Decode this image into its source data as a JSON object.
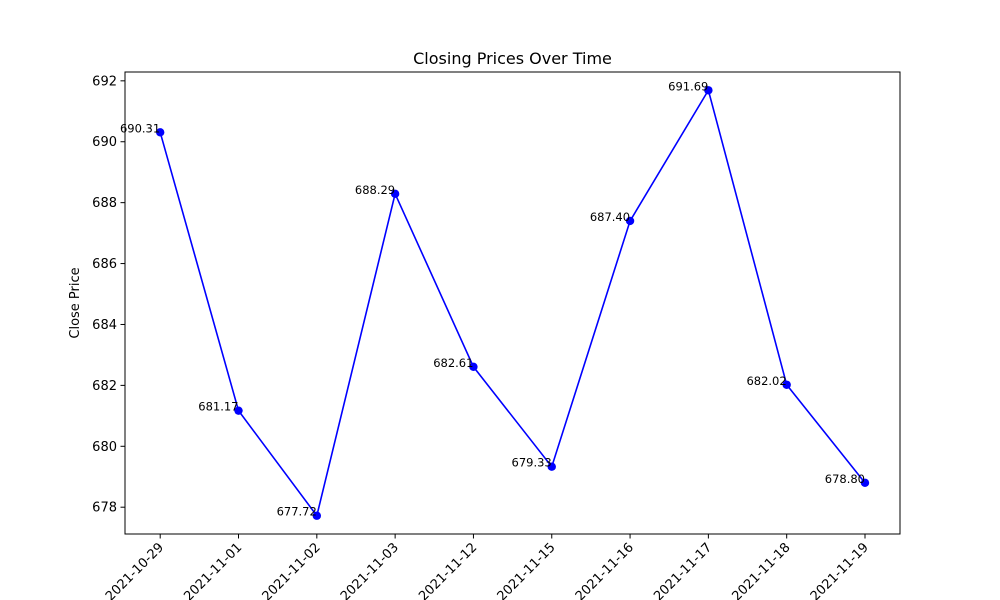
{
  "chart_data": {
    "type": "line",
    "title": "Closing Prices Over Time",
    "xlabel": "",
    "ylabel": "Close Price",
    "categories": [
      "2021-10-29",
      "2021-11-01",
      "2021-11-02",
      "2021-11-03",
      "2021-11-12",
      "2021-11-15",
      "2021-11-16",
      "2021-11-17",
      "2021-11-18",
      "2021-11-19"
    ],
    "series": [
      {
        "values": [
          690.31,
          681.17,
          677.72,
          688.29,
          682.61,
          679.33,
          687.4,
          691.69,
          682.02,
          678.8
        ],
        "data_labels": [
          "690.31",
          "681.17",
          "677.72",
          "688.29",
          "682.61",
          "679.33",
          "687.40",
          "691.69",
          "682.02",
          "678.80"
        ],
        "color": "#0000ff",
        "marker": "circle"
      }
    ],
    "ylim": [
      677.12,
      692.29
    ],
    "yticks": [
      678,
      680,
      682,
      684,
      686,
      688,
      690,
      692
    ],
    "ytick_labels": [
      "678",
      "680",
      "682",
      "684",
      "686",
      "688",
      "690",
      "692"
    ],
    "xtick_rotation": 45,
    "grid": false,
    "legend": false
  }
}
